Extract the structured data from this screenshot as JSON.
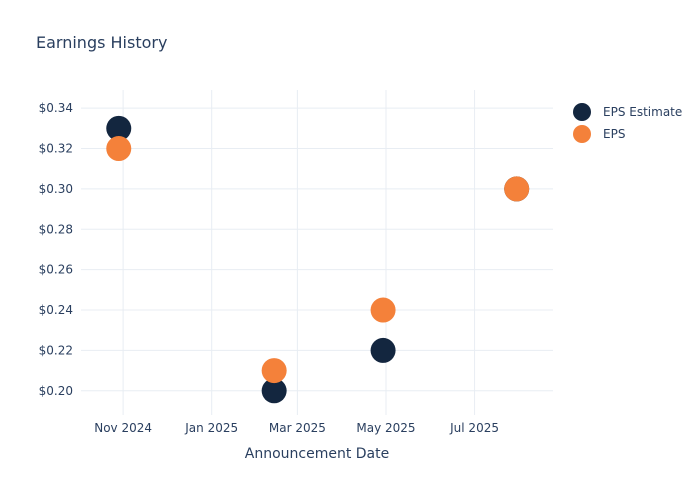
{
  "title": "Earnings History",
  "legend": {
    "items": [
      {
        "label": "EPS Estimate"
      },
      {
        "label": "EPS"
      }
    ]
  },
  "chart_data": {
    "type": "scatter",
    "title": "Earnings History",
    "xlabel": "Announcement Date",
    "ylabel": "",
    "x_dates": [
      "2024-10-29",
      "2025-02-13",
      "2025-04-29",
      "2025-07-30"
    ],
    "series": [
      {
        "name": "EPS Estimate",
        "color": "#13263f",
        "values": [
          0.33,
          0.2,
          0.22,
          0.3
        ]
      },
      {
        "name": "EPS",
        "color": "#f4813a",
        "values": [
          0.32,
          0.21,
          0.24,
          0.3
        ]
      }
    ],
    "y_ticks": [
      {
        "value": 0.34,
        "label": "$0.34"
      },
      {
        "value": 0.32,
        "label": "$0.32"
      },
      {
        "value": 0.3,
        "label": "$0.30"
      },
      {
        "value": 0.28,
        "label": "$0.28"
      },
      {
        "value": 0.26,
        "label": "$0.26"
      },
      {
        "value": 0.24,
        "label": "$0.24"
      },
      {
        "value": 0.22,
        "label": "$0.22"
      },
      {
        "value": 0.2,
        "label": "$0.20"
      }
    ],
    "x_ticks": [
      {
        "date": "2024-11-01",
        "label": "Nov 2024"
      },
      {
        "date": "2025-01-01",
        "label": "Jan 2025"
      },
      {
        "date": "2025-03-01",
        "label": "Mar 2025"
      },
      {
        "date": "2025-05-01",
        "label": "May 2025"
      },
      {
        "date": "2025-07-01",
        "label": "Jul 2025"
      }
    ],
    "xlim": [
      "2024-10-03",
      "2025-08-24"
    ],
    "ylim": [
      0.188,
      0.349
    ],
    "grid": true,
    "legend_position": "right-outside-top",
    "marker_diameter_px": 25,
    "text_color": "#2a3f5f",
    "grid_color": "#e8edf3",
    "background": "#ffffff"
  }
}
